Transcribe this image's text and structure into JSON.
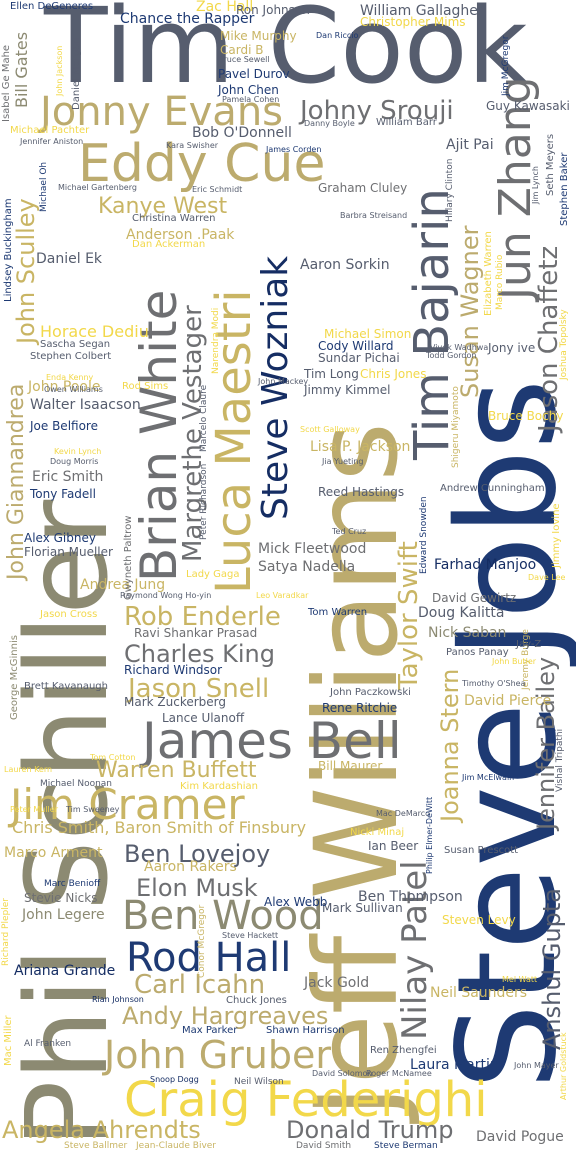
{
  "cloud": {
    "words": [
      {
        "text": "Steve Jobs",
        "color": "#1e3a73"
      },
      {
        "text": "Jeff Williams",
        "color": "#bcab6e"
      },
      {
        "text": "Phil Schiller",
        "color": "#8c8a72"
      },
      {
        "text": "Tim Cook",
        "color": "#565d6e"
      },
      {
        "text": "Luca Maestri",
        "color": "#c9b564"
      },
      {
        "text": "Brian White",
        "color": "#6e6f72"
      },
      {
        "text": "Steve Wozniak",
        "color": "#152d63"
      },
      {
        "text": "Tim Bajarin",
        "color": "#565d6e"
      },
      {
        "text": "Jun Zhang",
        "color": "#6e6f72"
      },
      {
        "text": "Eddy Cue",
        "color": "#bcab6e"
      },
      {
        "text": "Jonny Evans",
        "color": "#bcab6e"
      },
      {
        "text": "Johny Srouji",
        "color": "#6e6f72"
      },
      {
        "text": "Jim Cramer",
        "color": "#c9b564"
      },
      {
        "text": "James Bell",
        "color": "#6e6f72"
      },
      {
        "text": "Craig Federighi",
        "color": "#f2d84a"
      },
      {
        "text": "John Gruber",
        "color": "#bcab6e"
      },
      {
        "text": "Ben Wood",
        "color": "#8c8a72"
      },
      {
        "text": "Rod Hall",
        "color": "#1e3a73"
      },
      {
        "text": "Nilay Patel",
        "color": "#6e6f72"
      },
      {
        "text": "Jason Chaffetz",
        "color": "#6e6f72"
      },
      {
        "text": "John Giannandrea",
        "color": "#bcab6e"
      },
      {
        "text": "John Sculley",
        "color": "#c9b564"
      },
      {
        "text": "Margrethe Vestager",
        "color": "#6e6f72"
      },
      {
        "text": "Susan Wagner",
        "color": "#bcab6e"
      },
      {
        "text": "Taylor Swift",
        "color": "#c9b564"
      },
      {
        "text": "Joanna Stern",
        "color": "#c9b564"
      },
      {
        "text": "Anshul Gupta",
        "color": "#565d6e"
      },
      {
        "text": "Jennifer Bailey",
        "color": "#6e6f72"
      },
      {
        "text": "Kanye West",
        "color": "#c9b564"
      },
      {
        "text": "Rob Enderle",
        "color": "#c9b564"
      },
      {
        "text": "Charles King",
        "color": "#6e6f72"
      },
      {
        "text": "Jason Snell",
        "color": "#c9b564"
      },
      {
        "text": "Warren Buffett",
        "color": "#c9b564"
      },
      {
        "text": "Ben Lovejoy",
        "color": "#565d6e"
      },
      {
        "text": "Elon Musk",
        "color": "#6e6f72"
      },
      {
        "text": "Carl Icahn",
        "color": "#bcab6e"
      },
      {
        "text": "Andy Hargreaves",
        "color": "#bcab6e"
      },
      {
        "text": "Angela Ahrendts",
        "color": "#c9b564"
      },
      {
        "text": "Donald Trump",
        "color": "#6e6f72"
      },
      {
        "text": "Chris Smith, Baron Smith of Finsbury",
        "color": "#c9b564"
      },
      {
        "text": "Horace Dediu",
        "color": "#f2d84a"
      },
      {
        "text": "Aaron Sorkin",
        "color": "#565d6e"
      },
      {
        "text": "Farhad Manjoo",
        "color": "#152d63"
      },
      {
        "text": "Mick Fleetwood",
        "color": "#6e6f72"
      },
      {
        "text": "Satya Nadella",
        "color": "#6e6f72"
      },
      {
        "text": "Lisa P. Jackson",
        "color": "#c9b564"
      },
      {
        "text": "Anderson .Paak",
        "color": "#c9b564"
      },
      {
        "text": "Daniel Ek",
        "color": "#565d6e"
      },
      {
        "text": "Walter Isaacson",
        "color": "#565d6e"
      },
      {
        "text": "John Poole",
        "color": "#c9b564"
      },
      {
        "text": "Joe Belfiore",
        "color": "#1e3a73"
      },
      {
        "text": "Eric Smith",
        "color": "#6e6f72"
      },
      {
        "text": "Tony Fadell",
        "color": "#1e3a73"
      },
      {
        "text": "Alex Gibney",
        "color": "#1e3a73"
      },
      {
        "text": "Florian Mueller",
        "color": "#565d6e"
      },
      {
        "text": "Andrea Jung",
        "color": "#c9b564"
      },
      {
        "text": "Lance Ulanoff",
        "color": "#565d6e"
      },
      {
        "text": "Mark Zuckerberg",
        "color": "#565d6e"
      },
      {
        "text": "Richard Windsor",
        "color": "#1e3a73"
      },
      {
        "text": "Ravi Shankar Prasad",
        "color": "#6e6f72"
      },
      {
        "text": "Rene Ritchie",
        "color": "#1e3a73"
      },
      {
        "text": "David Gewirtz",
        "color": "#6e6f72"
      },
      {
        "text": "Doug Kalitta",
        "color": "#565d6e"
      },
      {
        "text": "Nick Saban",
        "color": "#8c8a72"
      },
      {
        "text": "David Pierce",
        "color": "#c9b564"
      },
      {
        "text": "Bill Maurer",
        "color": "#c9b564"
      },
      {
        "text": "Ian Beer",
        "color": "#565d6e"
      },
      {
        "text": "Ben Thompson",
        "color": "#565d6e"
      },
      {
        "text": "Mark Sullivan",
        "color": "#565d6e"
      },
      {
        "text": "Alex Webb",
        "color": "#1e3a73"
      },
      {
        "text": "Aaron Rakers",
        "color": "#c9b564"
      },
      {
        "text": "Marco Arment",
        "color": "#c9b564"
      },
      {
        "text": "Steven Levy",
        "color": "#f2d84a"
      },
      {
        "text": "Neil Saunders",
        "color": "#c9b564"
      },
      {
        "text": "Jack Gold",
        "color": "#6e6f72"
      },
      {
        "text": "Laura Martin",
        "color": "#1e3a73"
      },
      {
        "text": "David Pogue",
        "color": "#6e6f72"
      },
      {
        "text": "Ariana Grande",
        "color": "#152d63"
      },
      {
        "text": "John Legere",
        "color": "#8c8a72"
      },
      {
        "text": "Stevie Nicks",
        "color": "#6e6f72"
      },
      {
        "text": "Zac Hall",
        "color": "#f2d84a"
      },
      {
        "text": "Chance the Rapper",
        "color": "#1e3a73"
      },
      {
        "text": "William Gallagher",
        "color": "#565d6e"
      },
      {
        "text": "Bob O'Donnell",
        "color": "#565d6e"
      },
      {
        "text": "Ajit Pai",
        "color": "#565d6e"
      },
      {
        "text": "Guy Kawasaki",
        "color": "#565d6e"
      },
      {
        "text": "Pavel Durov",
        "color": "#1e3a73"
      },
      {
        "text": "John Chen",
        "color": "#1e3a73"
      },
      {
        "text": "Cardi B",
        "color": "#c9b564"
      },
      {
        "text": "Mike Murphy",
        "color": "#c9b564"
      },
      {
        "text": "Bill Gates",
        "color": "#8c8a72"
      },
      {
        "text": "Ellen DeGeneres",
        "color": "#1e3a73"
      },
      {
        "text": "Ron Johnson",
        "color": "#565d6e"
      },
      {
        "text": "Christopher Mims",
        "color": "#f2d84a"
      },
      {
        "text": "Graham Cluley",
        "color": "#6e6f72"
      },
      {
        "text": "Cody Willard",
        "color": "#1e3a73"
      },
      {
        "text": "Sundar Pichai",
        "color": "#565d6e"
      },
      {
        "text": "Michael Simon",
        "color": "#f2d84a"
      },
      {
        "text": "Jimmy Kimmel",
        "color": "#565d6e"
      },
      {
        "text": "Tim Long",
        "color": "#565d6e"
      },
      {
        "text": "Chris Jones",
        "color": "#f2d84a"
      },
      {
        "text": "Reed Hastings",
        "color": "#565d6e"
      },
      {
        "text": "Jony ive",
        "color": "#565d6e"
      },
      {
        "text": "Bruce Bochy",
        "color": "#f2d84a"
      },
      {
        "text": "Andrew Cunningham",
        "color": "#565d6e"
      },
      {
        "text": "Tom Warren",
        "color": "#1e3a73"
      },
      {
        "text": "Rod Sims",
        "color": "#f2d84a"
      },
      {
        "text": "Lady Gaga",
        "color": "#f2d84a"
      },
      {
        "text": "Jason Cross",
        "color": "#f2d84a"
      },
      {
        "text": "Michael Pachter",
        "color": "#f2d84a"
      },
      {
        "text": "Sascha Segan",
        "color": "#565d6e"
      },
      {
        "text": "Stephen Colbert",
        "color": "#565d6e"
      },
      {
        "text": "Lindsey Buckingham",
        "color": "#1e3a73"
      },
      {
        "text": "George McGinnis",
        "color": "#8c8a72"
      },
      {
        "text": "Brett Kavanaugh",
        "color": "#565d6e"
      },
      {
        "text": "Kim Kardashian",
        "color": "#f2d84a"
      },
      {
        "text": "Michael Noonan",
        "color": "#565d6e"
      },
      {
        "text": "Marc Benioff",
        "color": "#1e3a73"
      },
      {
        "text": "Richard Plepler",
        "color": "#f2d84a"
      },
      {
        "text": "Mac Miller",
        "color": "#f2d84a"
      },
      {
        "text": "Al Franken",
        "color": "#565d6e"
      },
      {
        "text": "Steve Ballmer",
        "color": "#c9b564"
      },
      {
        "text": "Jean-Claude Biver",
        "color": "#c9b564"
      },
      {
        "text": "David Smith",
        "color": "#6e6f72"
      },
      {
        "text": "Steve Berman",
        "color": "#1e3a73"
      },
      {
        "text": "Max Parker",
        "color": "#1e3a73"
      },
      {
        "text": "Shawn Harrison",
        "color": "#1e3a73"
      },
      {
        "text": "Ren Zhengfei",
        "color": "#565d6e"
      },
      {
        "text": "Chuck Jones",
        "color": "#565d6e"
      },
      {
        "text": "Rian Johnson",
        "color": "#152d63"
      },
      {
        "text": "Snoop Dogg",
        "color": "#152d63"
      },
      {
        "text": "Neil Wilson",
        "color": "#565d6e"
      },
      {
        "text": "Jeremy Burge",
        "color": "#c9b564"
      },
      {
        "text": "Jay-Z",
        "color": "#565d6e"
      },
      {
        "text": "Panos Panay",
        "color": "#565d6e"
      },
      {
        "text": "John Paczkowski",
        "color": "#565d6e"
      },
      {
        "text": "Jimmy Iovine",
        "color": "#f2d84a"
      },
      {
        "text": "Vishal Tripathi",
        "color": "#565d6e"
      },
      {
        "text": "Edward Snowden",
        "color": "#1e3a73"
      },
      {
        "text": "Susan Prescott",
        "color": "#565d6e"
      },
      {
        "text": "Nicki Minaj",
        "color": "#f2d84a"
      },
      {
        "text": "Jim McElwain",
        "color": "#1e3a73"
      },
      {
        "text": "Dan Riccio",
        "color": "#1e3a73"
      },
      {
        "text": "Jim McGregor",
        "color": "#1e3a73"
      },
      {
        "text": "Seth Meyers",
        "color": "#565d6e"
      },
      {
        "text": "Stephen Baker",
        "color": "#1e3a73"
      },
      {
        "text": "Daniel Morgan",
        "color": "#565d6e"
      },
      {
        "text": "Isabel Ge Mahe",
        "color": "#6e6f72"
      },
      {
        "text": "Michael Oh",
        "color": "#1e3a73"
      },
      {
        "text": "Christina Warren",
        "color": "#565d6e"
      },
      {
        "text": "Dan Ackerman",
        "color": "#f2d84a"
      },
      {
        "text": "Michael Gartenberg",
        "color": "#565d6e"
      },
      {
        "text": "Eric Schmidt",
        "color": "#565d6e"
      },
      {
        "text": "Barbra Streisand",
        "color": "#565d6e"
      },
      {
        "text": "James Corden",
        "color": "#1e3a73"
      },
      {
        "text": "William Barr",
        "color": "#565d6e"
      },
      {
        "text": "Danny Boyle",
        "color": "#565d6e"
      },
      {
        "text": "Kara Swisher",
        "color": "#565d6e"
      },
      {
        "text": "Bruce Sewell",
        "color": "#565d6e"
      },
      {
        "text": "Pamela Cohen",
        "color": "#565d6e"
      },
      {
        "text": "Jennifer Aniston",
        "color": "#565d6e"
      },
      {
        "text": "Hillary Clinton",
        "color": "#565d6e"
      },
      {
        "text": "Jim Lynch",
        "color": "#565d6e"
      },
      {
        "text": "Elizabeth Warren",
        "color": "#f2d84a"
      },
      {
        "text": "Marco Rubio",
        "color": "#f2d84a"
      },
      {
        "text": "Vivek Wadhwa",
        "color": "#565d6e"
      },
      {
        "text": "Todd Gordon",
        "color": "#565d6e"
      },
      {
        "text": "Joshua Topolsky",
        "color": "#f2d84a"
      },
      {
        "text": "Shigeru Miyamoto",
        "color": "#c9b564"
      },
      {
        "text": "Scott Galloway",
        "color": "#f2d84a"
      },
      {
        "text": "Jia Yueting",
        "color": "#565d6e"
      },
      {
        "text": "John Mackey",
        "color": "#565d6e"
      },
      {
        "text": "Narendra Modi",
        "color": "#f2d84a"
      },
      {
        "text": "Marcelo Claure",
        "color": "#565d6e"
      },
      {
        "text": "Peter Richardson",
        "color": "#565d6e"
      },
      {
        "text": "Gwyneth Paltrow",
        "color": "#6e6f72"
      },
      {
        "text": "Raymond Wong Ho-yin",
        "color": "#565d6e"
      },
      {
        "text": "Leo Varadkar",
        "color": "#f2d84a"
      },
      {
        "text": "Ted Cruz",
        "color": "#565d6e"
      },
      {
        "text": "Dave Lee",
        "color": "#f2d84a"
      },
      {
        "text": "Kevin Lynch",
        "color": "#f2d84a"
      },
      {
        "text": "Doug Morris",
        "color": "#565d6e"
      },
      {
        "text": "Enda Kenny",
        "color": "#f2d84a"
      },
      {
        "text": "Owen Williams",
        "color": "#565d6e"
      },
      {
        "text": "John Jackson",
        "color": "#f2d84a"
      },
      {
        "text": "Tom Cotton",
        "color": "#f2d84a"
      },
      {
        "text": "Lauren Kern",
        "color": "#f2d84a"
      },
      {
        "text": "John Butler",
        "color": "#f2d84a"
      },
      {
        "text": "Timothy O'Shea",
        "color": "#565d6e"
      },
      {
        "text": "Mac DeMarco",
        "color": "#565d6e"
      },
      {
        "text": "Philip Elmer-DeWitt",
        "color": "#1e3a73"
      },
      {
        "text": "Tim Sweeney",
        "color": "#565d6e"
      },
      {
        "text": "Peter Muller",
        "color": "#f2d84a"
      },
      {
        "text": "Conor McGregor",
        "color": "#c9b564"
      },
      {
        "text": "Steve Hackett",
        "color": "#565d6e"
      },
      {
        "text": "Mel Watt",
        "color": "#f2d84a"
      },
      {
        "text": "Arthur Goldstuck",
        "color": "#f2d84a"
      },
      {
        "text": "John Mayer",
        "color": "#565d6e"
      },
      {
        "text": "David Solomon",
        "color": "#565d6e"
      },
      {
        "text": "Roger McNamee",
        "color": "#565d6e"
      }
    ]
  }
}
